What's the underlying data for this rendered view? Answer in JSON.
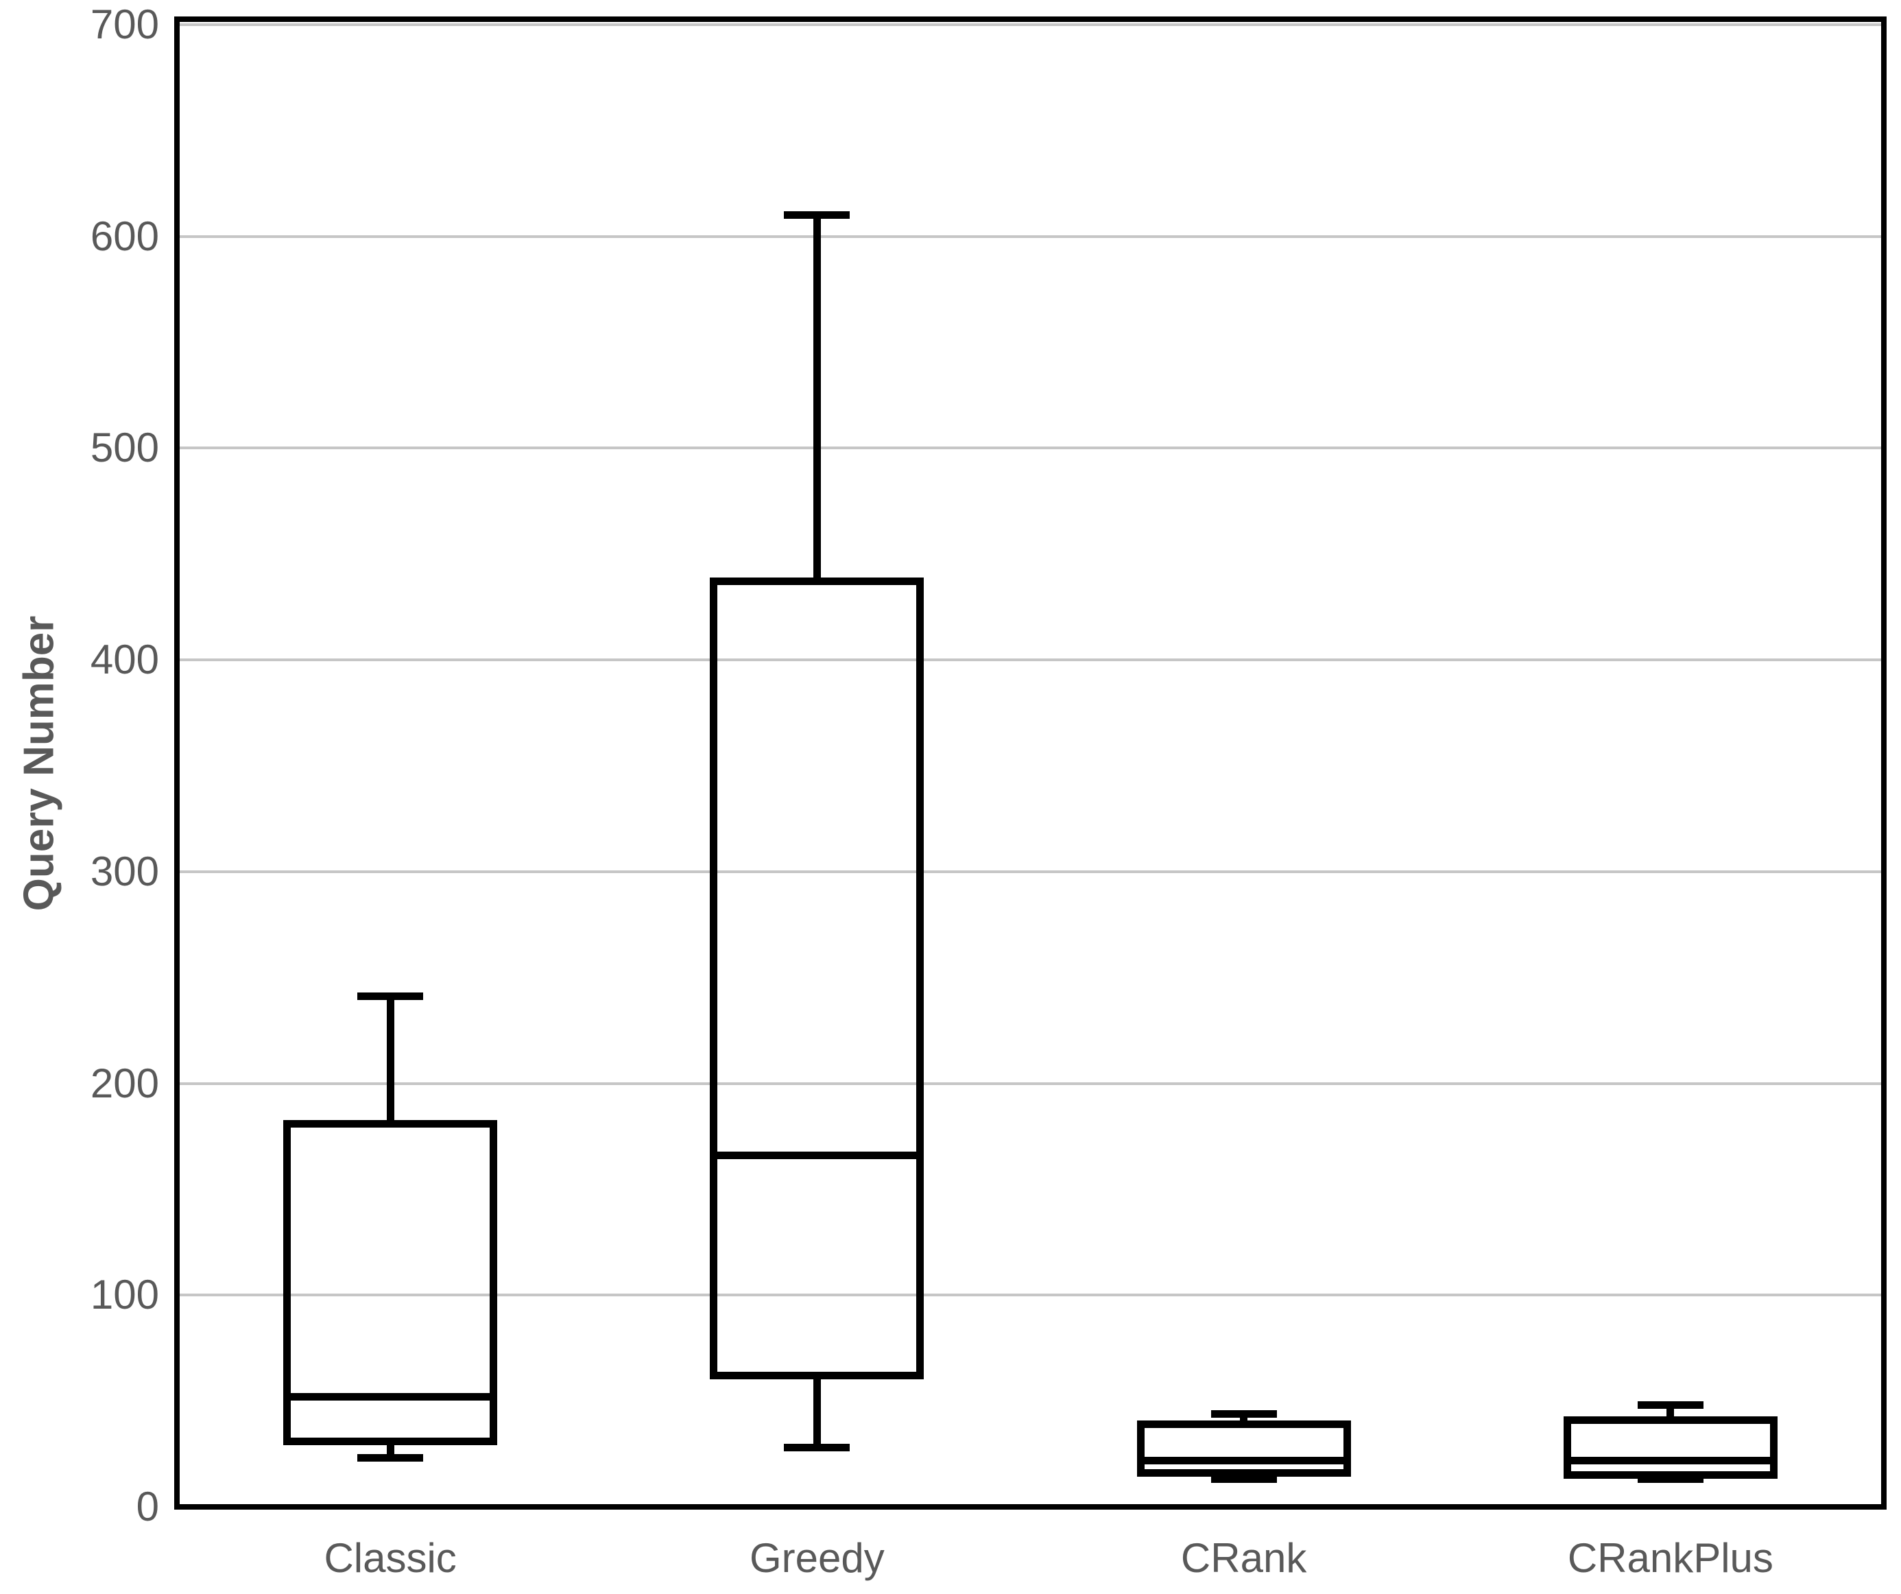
{
  "chart_data": {
    "type": "boxplot",
    "title": "",
    "xlabel": "",
    "ylabel": "Query Number",
    "ylim": [
      0,
      700
    ],
    "ytick_interval": 100,
    "yticks": [
      0,
      100,
      200,
      300,
      400,
      500,
      600,
      700
    ],
    "grid": true,
    "legend": "none",
    "categories": [
      "Classic",
      "Greedy",
      "CRank",
      "CRankPlus"
    ],
    "series": [
      {
        "name": "Classic",
        "whisker_low": 23,
        "q1": 31,
        "median": 52,
        "q3": 181,
        "whisker_high": 241
      },
      {
        "name": "Greedy",
        "whisker_low": 28,
        "q1": 62,
        "median": 166,
        "q3": 437,
        "whisker_high": 610
      },
      {
        "name": "CRank",
        "whisker_low": 13,
        "q1": 16,
        "median": 22,
        "q3": 39,
        "whisker_high": 44
      },
      {
        "name": "CRankPlus",
        "whisker_low": 13,
        "q1": 15,
        "median": 22,
        "q3": 41,
        "whisker_high": 48
      }
    ],
    "colors": {
      "background": "#ffffff",
      "box_stroke": "#000000",
      "axis_border": "#000000",
      "gridline": "#c6c6c6",
      "label_text": "#595959"
    }
  }
}
